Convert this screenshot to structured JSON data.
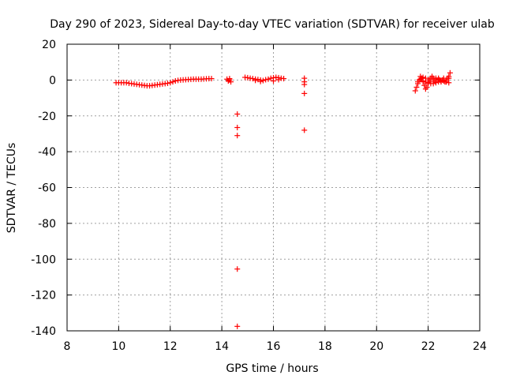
{
  "chart_data": {
    "type": "scatter",
    "title": "Day 290 of 2023, Sidereal Day-to-day VTEC variation (SDTVAR) for receiver ulab",
    "xlabel": "GPS time / hours",
    "ylabel": "SDTVAR / TECUs",
    "xlim": [
      8,
      24
    ],
    "ylim": [
      -140,
      20
    ],
    "xticks": [
      "8",
      "10",
      "12",
      "14",
      "16",
      "18",
      "20",
      "22",
      "24"
    ],
    "yticks": [
      "20",
      "0",
      "-20",
      "-40",
      "-60",
      "-80",
      "-100",
      "-120",
      "-140"
    ],
    "grid": true,
    "marker": "+",
    "series_color": "#ff0000",
    "series": [
      {
        "name": "SDTVAR",
        "x": [
          9.9,
          10.0,
          10.1,
          10.2,
          10.3,
          10.4,
          10.5,
          10.6,
          10.7,
          10.8,
          10.9,
          11.0,
          11.1,
          11.2,
          11.3,
          11.4,
          11.5,
          11.6,
          11.7,
          11.8,
          11.9,
          12.0,
          12.1,
          12.2,
          12.3,
          12.4,
          12.5,
          12.6,
          12.7,
          12.8,
          12.9,
          13.0,
          13.1,
          13.2,
          13.3,
          13.4,
          13.5,
          13.6,
          14.2,
          14.25,
          14.3,
          14.35,
          14.3,
          14.6,
          14.6,
          14.6,
          14.6,
          14.6,
          14.9,
          15.0,
          15.1,
          15.2,
          15.3,
          15.4,
          15.5,
          15.6,
          15.7,
          15.8,
          15.9,
          16.0,
          16.1,
          16.2,
          16.3,
          16.4,
          16.0,
          16.2,
          15.3,
          15.5,
          17.2,
          17.2,
          17.2,
          17.2,
          17.2,
          21.5,
          21.55,
          21.6,
          21.65,
          21.7,
          21.75,
          21.8,
          21.85,
          21.9,
          21.95,
          22.0,
          22.05,
          22.1,
          22.15,
          22.2,
          22.25,
          22.3,
          22.35,
          22.4,
          22.45,
          22.5,
          22.55,
          22.6,
          22.65,
          22.7,
          22.75,
          22.8,
          22.85,
          21.7,
          21.8,
          21.9,
          22.0,
          22.1,
          22.2,
          22.3,
          22.4,
          22.5,
          22.6,
          22.7,
          22.8,
          21.6,
          21.7,
          21.8,
          21.9,
          22.0,
          22.1,
          22.2,
          22.3,
          22.4,
          22.5,
          22.6,
          22.7,
          22.8
        ],
        "y": [
          -1.5,
          -1.5,
          -1.5,
          -1.5,
          -1.5,
          -1.8,
          -2.0,
          -2.2,
          -2.4,
          -2.6,
          -2.8,
          -3.0,
          -3.2,
          -3.2,
          -3.0,
          -2.8,
          -2.6,
          -2.4,
          -2.2,
          -2.0,
          -1.8,
          -1.5,
          -1.0,
          -0.5,
          -0.2,
          0.0,
          0.1,
          0.2,
          0.3,
          0.4,
          0.5,
          0.5,
          0.5,
          0.5,
          0.6,
          0.7,
          0.8,
          0.8,
          0.5,
          -0.5,
          0.0,
          -1.0,
          0.8,
          -19,
          -26.5,
          -31,
          -105.5,
          -137.5,
          1.5,
          1.3,
          1.0,
          0.8,
          0.5,
          0.3,
          0.0,
          -0.3,
          0.2,
          0.5,
          1.0,
          1.3,
          1.5,
          1.3,
          1.0,
          0.8,
          -0.5,
          0.2,
          -0.2,
          -0.8,
          1.0,
          -1.0,
          -2.5,
          -7.5,
          -28,
          -6,
          -4,
          -2,
          0,
          2,
          1,
          -1,
          -3,
          -5,
          -4,
          -2,
          0,
          1,
          2,
          1,
          0,
          -1,
          0,
          1,
          0,
          -1,
          0,
          1,
          -1,
          0,
          1,
          2,
          4,
          0.5,
          -0.5,
          -1.0,
          -1.5,
          -2.0,
          -2.0,
          -1.5,
          -1.0,
          -0.5,
          -0.5,
          -1.0,
          -1.5,
          -1.0,
          0.5,
          1.5,
          1.0,
          0.0,
          -1.0,
          0.0,
          1.0,
          0.5,
          -0.5,
          0.0,
          -1.0,
          1.0
        ]
      }
    ]
  }
}
